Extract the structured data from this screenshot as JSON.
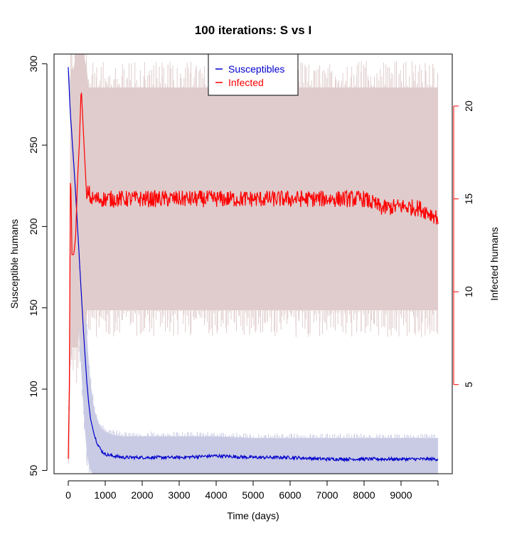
{
  "chart_data": {
    "type": "line",
    "title": "100  iterations: S vs I",
    "xlabel": "Time (days)",
    "ylabel_left": "Susceptible humans",
    "ylabel_right": "Infected humans",
    "xlim": [
      0,
      10000
    ],
    "ylim_left": [
      48,
      306
    ],
    "ylim_right": [
      0.2,
      22.8
    ],
    "x_ticks": [
      0,
      1000,
      2000,
      3000,
      4000,
      5000,
      6000,
      7000,
      8000,
      9000
    ],
    "y_left_ticks": [
      50,
      100,
      150,
      200,
      250,
      300
    ],
    "y_right_ticks": [
      5,
      10,
      15,
      20
    ],
    "legend": {
      "position": "top",
      "entries": [
        {
          "label": "Susceptibles",
          "color": "#0000cc"
        },
        {
          "label": "Infected",
          "color": "#ff0000"
        }
      ]
    },
    "series": [
      {
        "name": "Susceptibles",
        "axis": "left",
        "color": "#0000cc",
        "band_color": "#c9cbe4",
        "x": [
          0,
          50,
          100,
          150,
          200,
          250,
          300,
          350,
          400,
          450,
          500,
          550,
          600,
          700,
          800,
          900,
          1000,
          1200,
          1500,
          2000,
          3000,
          4000,
          5000,
          6000,
          7000,
          8000,
          9000,
          10000
        ],
        "values": [
          298,
          272,
          255,
          238,
          220,
          200,
          180,
          160,
          140,
          122,
          105,
          92,
          82,
          72,
          66,
          62,
          60,
          59,
          58,
          58,
          58,
          59,
          58,
          58,
          57,
          57,
          57,
          57
        ],
        "band_upper": [
          298,
          290,
          280,
          268,
          255,
          240,
          222,
          200,
          178,
          156,
          136,
          118,
          104,
          88,
          80,
          76,
          74,
          72,
          71,
          71,
          71,
          71,
          70,
          70,
          70,
          70,
          70,
          70
        ],
        "band_lower": [
          298,
          265,
          238,
          210,
          185,
          160,
          135,
          112,
          92,
          75,
          62,
          54,
          50,
          47,
          46,
          46,
          46,
          46,
          46,
          46,
          46,
          46,
          46,
          46,
          46,
          46,
          46,
          46
        ]
      },
      {
        "name": "Infected",
        "axis": "right",
        "color": "#ff0000",
        "band_color": "#e0cccc",
        "x": [
          0,
          30,
          60,
          100,
          150,
          200,
          250,
          300,
          350,
          400,
          450,
          500,
          550,
          600,
          800,
          1000,
          1500,
          2000,
          3000,
          4000,
          5000,
          6000,
          7000,
          8000,
          8500,
          9000,
          9500,
          10000
        ],
        "values": [
          1,
          5,
          17,
          12,
          12,
          13,
          16,
          18,
          21,
          19,
          17,
          15,
          15.5,
          15,
          15,
          15,
          15,
          15,
          15,
          15,
          15,
          15,
          15,
          15,
          14.5,
          14.6,
          14.5,
          14
        ],
        "band_upper": [
          1,
          9,
          22,
          22,
          22,
          23,
          23,
          23,
          23,
          23,
          22.5,
          22,
          21,
          21,
          21,
          21,
          21,
          21,
          21,
          21,
          21,
          21,
          21,
          21,
          21,
          21,
          21,
          21
        ],
        "band_lower": [
          1,
          1,
          6,
          7,
          7,
          7,
          7,
          8,
          8,
          8,
          8.5,
          9,
          9,
          9,
          9,
          9,
          9,
          9,
          9,
          9,
          9,
          9,
          9,
          9,
          9,
          9,
          9,
          9
        ]
      }
    ]
  }
}
